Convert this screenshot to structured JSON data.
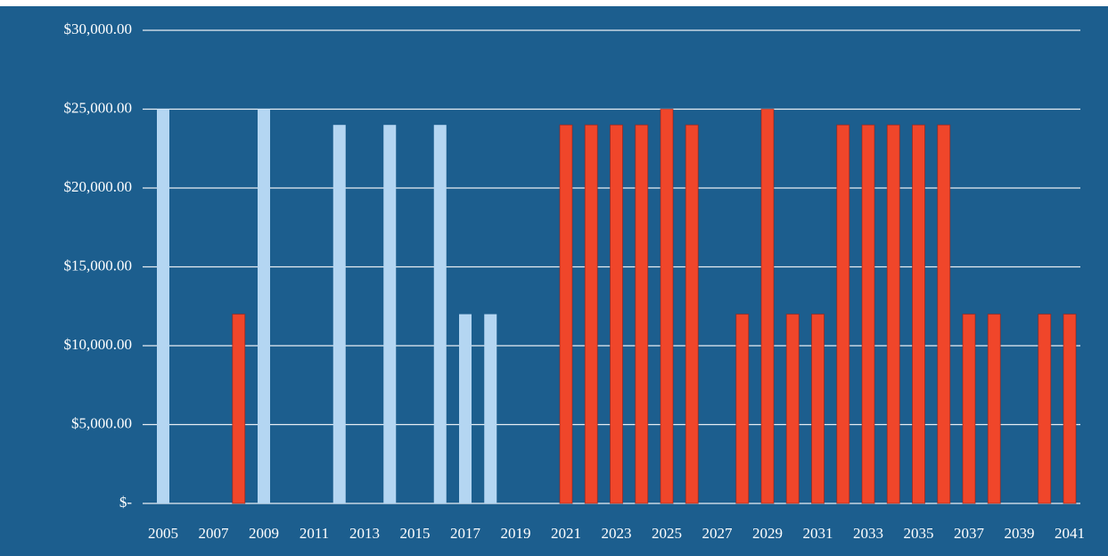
{
  "chart_data": {
    "type": "bar",
    "categories": [
      "2005",
      null,
      "2007",
      null,
      "2009",
      null,
      "2011",
      null,
      "2013",
      null,
      "2015",
      null,
      "2017",
      null,
      "2019",
      null,
      "2021",
      null,
      "2023",
      null,
      "2025",
      null,
      "2027",
      null,
      "2029",
      null,
      "2031",
      null,
      "2033",
      null,
      "2035",
      null,
      "2037",
      null,
      "2039",
      null,
      "2041"
    ],
    "values": [
      25000,
      null,
      null,
      12000,
      25000,
      null,
      null,
      24000,
      null,
      24000,
      null,
      24000,
      12000,
      12000,
      null,
      null,
      24000,
      24000,
      24000,
      24000,
      25000,
      24000,
      null,
      12000,
      25000,
      12000,
      12000,
      24000,
      24000,
      24000,
      24000,
      24000,
      12000,
      12000,
      null,
      12000,
      12000
    ],
    "colors": [
      "#b4d6f2",
      null,
      null,
      "#f0462a",
      "#b4d6f2",
      null,
      null,
      "#b4d6f2",
      null,
      "#b4d6f2",
      null,
      "#b4d6f2",
      "#b4d6f2",
      "#b4d6f2",
      null,
      null,
      "#f0462a",
      "#f0462a",
      "#f0462a",
      "#f0462a",
      "#f0462a",
      "#f0462a",
      null,
      "#f0462a",
      "#f0462a",
      "#f0462a",
      "#f0462a",
      "#f0462a",
      "#f0462a",
      "#f0462a",
      "#f0462a",
      "#f0462a",
      "#f0462a",
      "#f0462a",
      null,
      "#f0462a",
      "#f0462a"
    ],
    "ylim": [
      0,
      30000
    ],
    "yticks": [
      {
        "value": 0,
        "label": "$-"
      },
      {
        "value": 5000,
        "label": "$5,000.00"
      },
      {
        "value": 10000,
        "label": "$10,000.00"
      },
      {
        "value": 15000,
        "label": "$15,000.00"
      },
      {
        "value": 20000,
        "label": "$20,000.00"
      },
      {
        "value": 25000,
        "label": "$25,000.00"
      },
      {
        "value": 30000,
        "label": "$30,000.00"
      }
    ],
    "grid": true
  }
}
